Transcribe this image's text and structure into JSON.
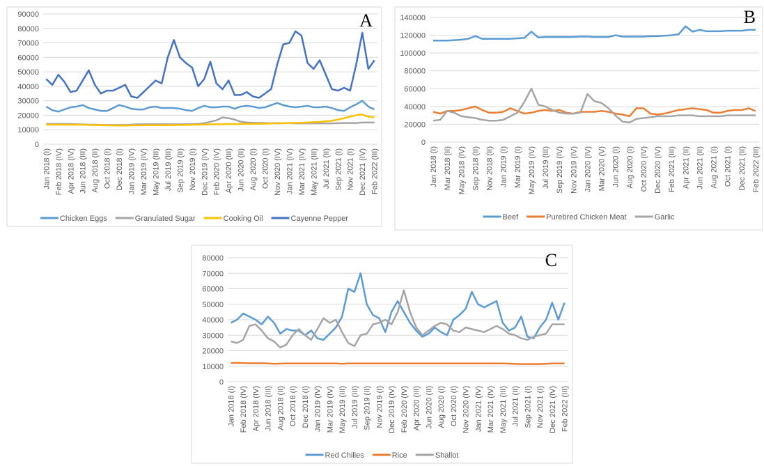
{
  "chart_data": [
    {
      "type": "line",
      "panel": "A",
      "categories": [
        "Jan 2018 (I)",
        null,
        "Feb 2018 (IV)",
        null,
        "Apr 2018 (IV)",
        null,
        "Jun 2018 (III)",
        null,
        "Aug 2018 (II)",
        null,
        "Oct 2018 (I)",
        null,
        "Dec 2018 (I)",
        null,
        "Jan 2019 (IV)",
        null,
        "Mar 2019 (IV)",
        null,
        "May 2019 (III)",
        null,
        "Jul 2019 (III)",
        null,
        "Sep 2019 (II)",
        null,
        "Nov 2019 (I)",
        null,
        "Dec 2019 (IV)",
        null,
        "Feb 2020 (IV)",
        null,
        "Apr 2020 (III)",
        null,
        "Jun 2020 (II)",
        null,
        "Aug 2020 (I)",
        null,
        "Oct 2020 (I)",
        null,
        "Nov 2020 (IV)",
        null,
        "Jan 2021 (IV)",
        null,
        "Mar 2021 (IV)",
        null,
        "May 2021 (III)",
        null,
        "Jul 2021 (II)",
        null,
        "Sep 2021 (I)",
        null,
        "Nov 2021 (I)",
        null,
        "Dec 2021 (IV)",
        null,
        "Feb 2022 (III)"
      ],
      "series": [
        {
          "name": "Chicken Eggs",
          "color": "#5b9bd5",
          "values": [
            26000,
            23500,
            22500,
            24000,
            25500,
            26000,
            27000,
            25000,
            24000,
            23000,
            23000,
            25000,
            27000,
            26000,
            24500,
            24000,
            24000,
            25500,
            26000,
            25000,
            25000,
            25000,
            24500,
            23500,
            23000,
            25000,
            26500,
            25500,
            25500,
            26000,
            26000,
            24500,
            26000,
            26500,
            26000,
            25000,
            25500,
            27000,
            28500,
            27000,
            26000,
            25500,
            26000,
            26500,
            25500,
            25500,
            26000,
            25000,
            23500,
            23000,
            25500,
            27500,
            30000,
            26000,
            24000
          ]
        },
        {
          "name": "Granulated Sugar",
          "color": "#a5a5a5",
          "values": [
            14000,
            14000,
            14000,
            14000,
            14000,
            13800,
            13700,
            13500,
            13500,
            13300,
            13300,
            13300,
            13300,
            13300,
            13500,
            13700,
            13800,
            13800,
            13800,
            13800,
            13800,
            13800,
            13800,
            13800,
            13900,
            14000,
            14500,
            15500,
            16500,
            18500,
            18000,
            17000,
            15500,
            15000,
            14800,
            14700,
            14600,
            14500,
            14500,
            14500,
            14500,
            14400,
            14400,
            14400,
            14400,
            14400,
            14400,
            14400,
            14500,
            14600,
            14600,
            14600,
            15000,
            15000,
            15000
          ]
        },
        {
          "name": "Cooking Oil",
          "color": "#ffc000",
          "values": [
            13500,
            13500,
            13500,
            13500,
            13500,
            13500,
            13500,
            13300,
            13200,
            13200,
            13000,
            13000,
            12900,
            12900,
            13000,
            13000,
            13100,
            13100,
            13100,
            13100,
            13200,
            13200,
            13300,
            13300,
            13400,
            13500,
            13600,
            13700,
            13800,
            13800,
            13900,
            13900,
            14000,
            14000,
            14100,
            14100,
            14200,
            14300,
            14400,
            14500,
            14600,
            14700,
            14800,
            15000,
            15200,
            15400,
            15800,
            16200,
            17000,
            18000,
            19000,
            20000,
            20500,
            19000,
            18500
          ]
        },
        {
          "name": "Cayenne Pepper",
          "color": "#4472c4",
          "values": [
            45000,
            41000,
            48000,
            43000,
            36000,
            37000,
            44000,
            51000,
            41000,
            35000,
            37000,
            37000,
            39000,
            41000,
            33000,
            32000,
            36000,
            40000,
            44000,
            42000,
            60000,
            72000,
            60000,
            56000,
            53000,
            40000,
            45000,
            57000,
            42000,
            38000,
            44000,
            34000,
            34000,
            36000,
            33000,
            32000,
            35000,
            38000,
            55000,
            69000,
            70000,
            78000,
            75000,
            56000,
            52000,
            58000,
            48000,
            38000,
            37000,
            39000,
            37000,
            55000,
            77000,
            52000,
            58000
          ]
        }
      ],
      "ylim": [
        0,
        90000
      ],
      "yticks": [
        0,
        10000,
        20000,
        30000,
        40000,
        50000,
        60000,
        70000,
        80000,
        90000
      ],
      "legend": "bottom"
    },
    {
      "type": "line",
      "panel": "B",
      "categories": [
        "Jan 2018 (I)",
        null,
        "Mar 2018 (II)",
        null,
        "May 2018 (IV)",
        null,
        "Sep 2018 (II)",
        null,
        "Nov 2018 (II)",
        null,
        "Jan 2019 (I)",
        null,
        "Mar 2019 (I)",
        null,
        "May 2019 (IV)",
        null,
        "Jul 2019 (III)",
        null,
        "Sep 2019 (IV)",
        null,
        "Nov 2019 (IV)",
        null,
        "Jan 2020 (IV)",
        null,
        "Mar 2020 (V)",
        null,
        "Jun 2020 (I)",
        null,
        "Aug 2020 (I)",
        null,
        "Oct 2020 (IV)",
        null,
        "Dec 2020 (IV)",
        null,
        "Feb 2021 (III)",
        null,
        "Apr 2021 (II)",
        null,
        "Jun 2021 (II)",
        null,
        "Aug 2021 (I)",
        null,
        "Oct 2021 (I)",
        null,
        "Dec 2021 (II)",
        null,
        "Feb 2022 (III)"
      ],
      "series": [
        {
          "name": "Beef",
          "color": "#5b9bd5",
          "values": [
            114000,
            114000,
            114000,
            114500,
            115000,
            116000,
            119000,
            116000,
            116000,
            116000,
            116000,
            116000,
            116500,
            117000,
            124000,
            117500,
            118000,
            118000,
            118000,
            118000,
            118000,
            118500,
            118500,
            118000,
            118000,
            118000,
            120000,
            118500,
            118500,
            118500,
            118500,
            119000,
            119000,
            119500,
            120000,
            121000,
            130000,
            124000,
            126000,
            124500,
            124500,
            124500,
            125000,
            125000,
            125000,
            126000,
            126000
          ]
        },
        {
          "name": "Purebred Chicken Meat",
          "color": "#ed7d31",
          "values": [
            34000,
            32000,
            35000,
            35000,
            36000,
            38000,
            40000,
            36000,
            33000,
            33000,
            34000,
            38000,
            35000,
            32000,
            33000,
            35000,
            36000,
            35000,
            36000,
            33000,
            32000,
            34000,
            34000,
            34000,
            35000,
            34000,
            32000,
            31000,
            29000,
            38000,
            38000,
            32000,
            31000,
            32000,
            34000,
            36000,
            37000,
            38000,
            37000,
            36000,
            33000,
            33000,
            35000,
            36000,
            36000,
            38000,
            35000
          ]
        },
        {
          "name": "Garlic",
          "color": "#a5a5a5",
          "values": [
            24000,
            25000,
            35000,
            33000,
            29000,
            28000,
            27000,
            25000,
            24000,
            24000,
            25000,
            29000,
            33000,
            45000,
            60000,
            42000,
            40000,
            36000,
            33000,
            32000,
            32000,
            33000,
            54000,
            46000,
            44000,
            38000,
            30000,
            23000,
            22000,
            26000,
            27000,
            28000,
            29000,
            29000,
            29000,
            30000,
            30000,
            30000,
            29000,
            29000,
            29000,
            29000,
            30000,
            30000,
            30000,
            30000,
            30000
          ]
        }
      ],
      "ylim": [
        0,
        140000
      ],
      "yticks": [
        0,
        20000,
        40000,
        60000,
        80000,
        100000,
        120000,
        140000
      ],
      "legend": "bottom"
    },
    {
      "type": "line",
      "panel": "C",
      "categories": [
        "Jan 2018 (I)",
        null,
        "Feb 2018 (IV)",
        null,
        "Apr 2018 (IV)",
        null,
        "Jun 2018 (III)",
        null,
        "Aug 2018 (II)",
        null,
        "Oct 2018 (I)",
        null,
        "Dec 2018 (I)",
        null,
        "Jan 2019 (IV)",
        null,
        "Mar 2019 (IV)",
        null,
        "May 2019 (III)",
        null,
        "Jul 2019 (III)",
        null,
        "Sep 2019 (II)",
        null,
        "Nov 2019 (I)",
        null,
        "Dec 2019 (IV)",
        null,
        "Feb 2020 (IV)",
        null,
        "Apr 2020 (III)",
        null,
        "Jun 2020 (II)",
        null,
        "Aug 2020 (I)",
        null,
        "Oct 2020 (I)",
        null,
        "Nov 2020 (IV)",
        null,
        "Jan 2021 (IV)",
        null,
        "Mar 2021 (IV)",
        null,
        "May 2021 (III)",
        null,
        "Jul 2021 (II)",
        null,
        "Sep 2021 (I)",
        null,
        "Nov 2021 (I)",
        null,
        "Dec 2021 (IV)",
        null,
        "Feb 2022 (III)"
      ],
      "series": [
        {
          "name": "Red Chilies",
          "color": "#5b9bd5",
          "values": [
            38000,
            40000,
            44000,
            42000,
            40000,
            37000,
            42000,
            38000,
            31000,
            34000,
            33000,
            33000,
            30000,
            33000,
            28000,
            27000,
            31000,
            35000,
            42000,
            60000,
            58000,
            70000,
            50000,
            43000,
            41000,
            32000,
            45000,
            52000,
            45000,
            38000,
            33000,
            29000,
            31000,
            35000,
            32000,
            30000,
            40000,
            43000,
            47000,
            58000,
            50000,
            48000,
            50000,
            52000,
            38000,
            33000,
            35000,
            42000,
            29000,
            28000,
            35000,
            40000,
            51000,
            40000,
            51000
          ]
        },
        {
          "name": "Rice",
          "color": "#ed7d31",
          "values": [
            12000,
            12200,
            12000,
            11900,
            11900,
            11900,
            11800,
            11600,
            11700,
            11800,
            11800,
            11800,
            11800,
            11800,
            11800,
            11800,
            11800,
            11800,
            11600,
            11800,
            11800,
            11800,
            11800,
            11800,
            11800,
            11800,
            11800,
            11800,
            11800,
            11800,
            11800,
            11800,
            11800,
            11800,
            11800,
            11800,
            11800,
            11800,
            11800,
            11800,
            11800,
            11800,
            11800,
            11800,
            11800,
            11700,
            11500,
            11400,
            11400,
            11400,
            11400,
            11600,
            11800,
            11800,
            11800
          ]
        },
        {
          "name": "Shallot",
          "color": "#a5a5a5",
          "values": [
            26000,
            25000,
            27000,
            36000,
            37000,
            33000,
            28000,
            26000,
            22000,
            24000,
            30000,
            34000,
            30000,
            27000,
            34000,
            41000,
            38000,
            40000,
            32000,
            25000,
            23000,
            30000,
            31000,
            37000,
            38000,
            40000,
            37000,
            45000,
            59000,
            45000,
            35000,
            30000,
            33000,
            36000,
            38000,
            37000,
            33000,
            32000,
            35000,
            34000,
            33000,
            32000,
            34000,
            36000,
            34000,
            31000,
            30000,
            28000,
            27000,
            29000,
            30000,
            31000,
            37000,
            37000,
            37000
          ]
        }
      ],
      "ylim": [
        0,
        80000
      ],
      "yticks": [
        0,
        10000,
        20000,
        30000,
        40000,
        50000,
        60000,
        70000,
        80000
      ],
      "legend": "bottom"
    }
  ]
}
